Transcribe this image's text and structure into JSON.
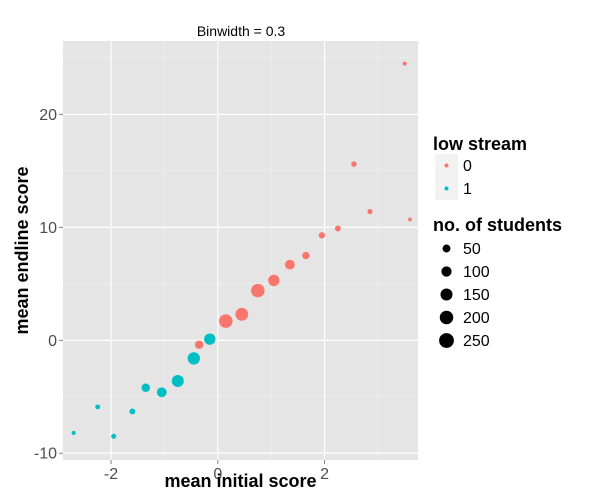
{
  "chart_data": {
    "type": "scatter",
    "title": "Binwidth = 0.3",
    "xlabel": "mean initial score",
    "ylabel": "mean endline score",
    "xlim": [
      -2.9,
      3.75
    ],
    "ylim": [
      -10.6,
      26.5
    ],
    "x_ticks": [
      -2,
      0,
      2
    ],
    "y_ticks": [
      -10,
      0,
      10,
      20
    ],
    "x_tick_labels": [
      "-2",
      "0",
      "2"
    ],
    "y_tick_labels": [
      "-10",
      "0",
      "10",
      "20"
    ],
    "grid": true,
    "legend_position": "right",
    "color_legend": {
      "title": "low stream",
      "entries": [
        {
          "label": "0",
          "color": "#F8766D"
        },
        {
          "label": "1",
          "color": "#00BFC4"
        }
      ]
    },
    "size_legend": {
      "title": "no. of students",
      "entries": [
        {
          "label": "50",
          "value": 50
        },
        {
          "label": "100",
          "value": 100
        },
        {
          "label": "150",
          "value": 150
        },
        {
          "label": "200",
          "value": 200
        },
        {
          "label": "250",
          "value": 250
        }
      ]
    },
    "series": [
      {
        "name": "0",
        "color": "#F8766D",
        "points": [
          {
            "x": -0.35,
            "y": -0.4,
            "n": 60
          },
          {
            "x": 0.15,
            "y": 1.7,
            "n": 200
          },
          {
            "x": 0.45,
            "y": 2.3,
            "n": 175
          },
          {
            "x": 0.75,
            "y": 4.4,
            "n": 200
          },
          {
            "x": 1.05,
            "y": 5.3,
            "n": 130
          },
          {
            "x": 1.35,
            "y": 6.7,
            "n": 90
          },
          {
            "x": 1.65,
            "y": 7.5,
            "n": 40
          },
          {
            "x": 1.95,
            "y": 9.3,
            "n": 25
          },
          {
            "x": 2.25,
            "y": 9.9,
            "n": 20
          },
          {
            "x": 2.55,
            "y": 15.6,
            "n": 15
          },
          {
            "x": 2.85,
            "y": 11.4,
            "n": 12
          },
          {
            "x": 3.5,
            "y": 24.5,
            "n": 5
          },
          {
            "x": 3.6,
            "y": 10.7,
            "n": 3
          }
        ]
      },
      {
        "name": "1",
        "color": "#00BFC4",
        "points": [
          {
            "x": -2.7,
            "y": -8.2,
            "n": 5
          },
          {
            "x": -2.25,
            "y": -5.9,
            "n": 10
          },
          {
            "x": -1.95,
            "y": -8.5,
            "n": 12
          },
          {
            "x": -1.6,
            "y": -6.3,
            "n": 20
          },
          {
            "x": -1.35,
            "y": -4.2,
            "n": 60
          },
          {
            "x": -1.05,
            "y": -4.6,
            "n": 90
          },
          {
            "x": -0.75,
            "y": -3.6,
            "n": 150
          },
          {
            "x": -0.45,
            "y": -1.6,
            "n": 160
          },
          {
            "x": -0.15,
            "y": 0.1,
            "n": 130
          }
        ]
      }
    ]
  }
}
